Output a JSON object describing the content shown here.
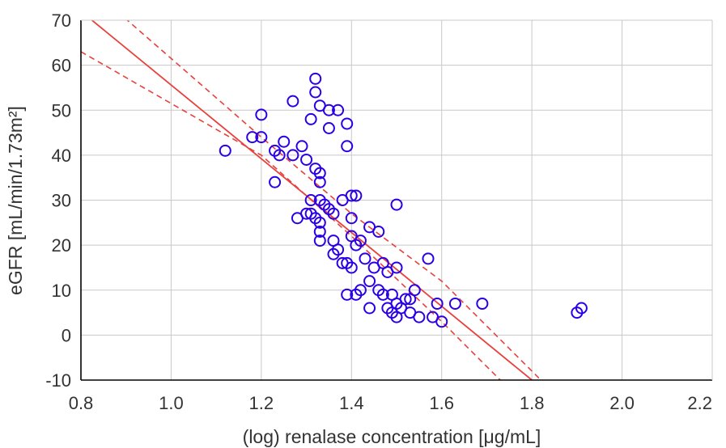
{
  "chart_data": {
    "type": "scatter",
    "title": "",
    "xlabel": "(log) renalase concentration [μg/mL]",
    "ylabel": "eGFR [mL/min/1.73m²]",
    "xlim": [
      0.8,
      2.2
    ],
    "ylim": [
      -10,
      70
    ],
    "x_ticks": [
      "0.8",
      "1.0",
      "1.2",
      "1.4",
      "1.6",
      "1.8",
      "2.0",
      "2.2"
    ],
    "y_ticks": [
      "-10",
      "0",
      "10",
      "20",
      "30",
      "40",
      "50",
      "60",
      "70"
    ],
    "grid": true,
    "colors": {
      "points": "#2b00e6",
      "fit": "#e8413c",
      "confidence": "#e8413c",
      "grid": "#c8c8c8",
      "axis": "#000000"
    },
    "series": [
      {
        "marker": "open-circle",
        "points": [
          [
            1.12,
            41
          ],
          [
            1.18,
            44
          ],
          [
            1.2,
            44
          ],
          [
            1.2,
            49
          ],
          [
            1.23,
            34
          ],
          [
            1.23,
            41
          ],
          [
            1.24,
            40
          ],
          [
            1.25,
            43
          ],
          [
            1.27,
            52
          ],
          [
            1.27,
            40
          ],
          [
            1.29,
            42
          ],
          [
            1.3,
            39
          ],
          [
            1.31,
            48
          ],
          [
            1.32,
            37
          ],
          [
            1.33,
            36
          ],
          [
            1.33,
            34
          ],
          [
            1.32,
            57
          ],
          [
            1.32,
            54
          ],
          [
            1.33,
            51
          ],
          [
            1.35,
            50
          ],
          [
            1.37,
            50
          ],
          [
            1.35,
            46
          ],
          [
            1.39,
            47
          ],
          [
            1.39,
            42
          ],
          [
            1.28,
            26
          ],
          [
            1.3,
            27
          ],
          [
            1.31,
            27
          ],
          [
            1.32,
            26
          ],
          [
            1.31,
            30
          ],
          [
            1.33,
            30
          ],
          [
            1.34,
            29
          ],
          [
            1.35,
            28
          ],
          [
            1.36,
            27
          ],
          [
            1.33,
            25
          ],
          [
            1.33,
            23
          ],
          [
            1.33,
            21
          ],
          [
            1.36,
            21
          ],
          [
            1.36,
            18
          ],
          [
            1.37,
            19
          ],
          [
            1.38,
            16
          ],
          [
            1.39,
            16
          ],
          [
            1.4,
            15
          ],
          [
            1.38,
            30
          ],
          [
            1.4,
            31
          ],
          [
            1.41,
            31
          ],
          [
            1.4,
            26
          ],
          [
            1.4,
            22
          ],
          [
            1.41,
            20
          ],
          [
            1.42,
            21
          ],
          [
            1.43,
            17
          ],
          [
            1.44,
            24
          ],
          [
            1.46,
            23
          ],
          [
            1.45,
            15
          ],
          [
            1.47,
            16
          ],
          [
            1.48,
            14
          ],
          [
            1.5,
            15
          ],
          [
            1.5,
            29
          ],
          [
            1.44,
            12
          ],
          [
            1.46,
            10
          ],
          [
            1.47,
            9
          ],
          [
            1.42,
            10
          ],
          [
            1.41,
            9
          ],
          [
            1.39,
            9
          ],
          [
            1.49,
            9
          ],
          [
            1.44,
            6
          ],
          [
            1.48,
            6
          ],
          [
            1.49,
            5
          ],
          [
            1.5,
            7
          ],
          [
            1.51,
            6
          ],
          [
            1.52,
            8
          ],
          [
            1.53,
            8
          ],
          [
            1.53,
            5
          ],
          [
            1.54,
            10
          ],
          [
            1.5,
            4
          ],
          [
            1.55,
            4
          ],
          [
            1.57,
            17
          ],
          [
            1.59,
            7
          ],
          [
            1.58,
            4
          ],
          [
            1.6,
            3
          ],
          [
            1.63,
            7
          ],
          [
            1.69,
            7
          ],
          [
            1.9,
            5
          ],
          [
            1.91,
            6
          ]
        ]
      }
    ],
    "fit_line": {
      "points": [
        [
          0.8,
          72
        ],
        [
          1.8,
          -10
        ]
      ]
    },
    "confidence_band": {
      "upper": [
        [
          0.8,
          79
        ],
        [
          1.2,
          44
        ],
        [
          1.4,
          27
        ],
        [
          1.6,
          12
        ],
        [
          1.82,
          -10
        ]
      ],
      "lower": [
        [
          0.8,
          63
        ],
        [
          1.2,
          40
        ],
        [
          1.4,
          22
        ],
        [
          1.6,
          3
        ],
        [
          1.73,
          -10
        ]
      ]
    }
  }
}
